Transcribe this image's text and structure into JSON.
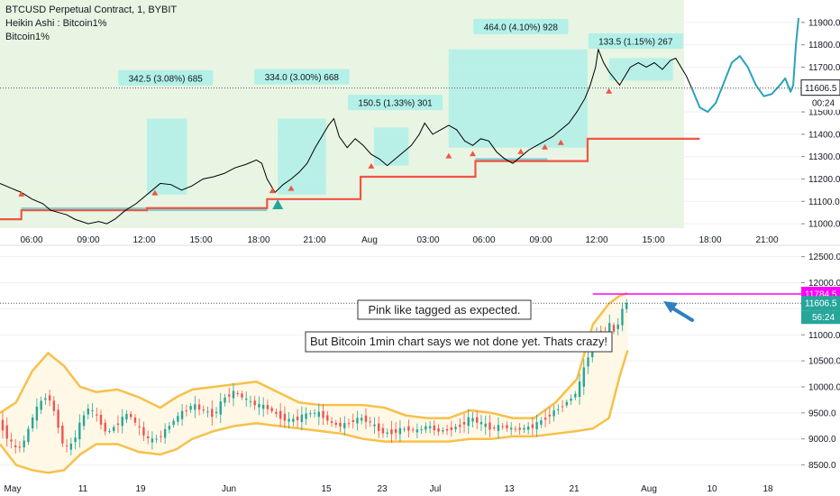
{
  "header": {
    "symbol_line": "BTCUSD Perpetual Contract, 1, BYBIT",
    "line2": "Heikin Ashi : Bitcoin1%",
    "line3": "Bitcoin1%"
  },
  "chart_data": [
    {
      "type": "line",
      "title": "BTCUSD Perpetual Contract, 1, BYBIT",
      "y_ticks": [
        "11900.0",
        "11800.0",
        "11700.0",
        "11600.0",
        "11500.0",
        "11400.0",
        "11300.0",
        "11200.0",
        "11100.0",
        "11000.0"
      ],
      "ylim": [
        10960,
        11960
      ],
      "x_ticks": [
        "06:00",
        "09:00",
        "12:00",
        "15:00",
        "18:00",
        "21:00",
        "Aug",
        "03:00",
        "06:00",
        "09:00",
        "12:00",
        "15:00",
        "18:00",
        "21:00"
      ],
      "last_price": "11606.5",
      "countdown": "00:24",
      "price_series": [
        {
          "t": 0,
          "y": 11180
        },
        {
          "t": 4,
          "y": 11160
        },
        {
          "t": 8,
          "y": 11140
        },
        {
          "t": 12,
          "y": 11110
        },
        {
          "t": 16,
          "y": 11090
        },
        {
          "t": 19,
          "y": 11060
        },
        {
          "t": 22,
          "y": 11050
        },
        {
          "t": 25,
          "y": 11040
        },
        {
          "t": 28,
          "y": 11020
        },
        {
          "t": 33,
          "y": 11000
        },
        {
          "t": 37,
          "y": 11010
        },
        {
          "t": 40,
          "y": 11000
        },
        {
          "t": 43,
          "y": 11020
        },
        {
          "t": 47,
          "y": 11060
        },
        {
          "t": 51,
          "y": 11090
        },
        {
          "t": 55,
          "y": 11130
        },
        {
          "t": 60,
          "y": 11180
        },
        {
          "t": 64,
          "y": 11175
        },
        {
          "t": 68,
          "y": 11150
        },
        {
          "t": 72,
          "y": 11170
        },
        {
          "t": 76,
          "y": 11200
        },
        {
          "t": 80,
          "y": 11210
        },
        {
          "t": 84,
          "y": 11225
        },
        {
          "t": 88,
          "y": 11250
        },
        {
          "t": 92,
          "y": 11265
        },
        {
          "t": 96,
          "y": 11285
        },
        {
          "t": 98,
          "y": 11270
        },
        {
          "t": 100,
          "y": 11200
        },
        {
          "t": 103,
          "y": 11140
        },
        {
          "t": 106,
          "y": 11175
        },
        {
          "t": 109,
          "y": 11200
        },
        {
          "t": 112,
          "y": 11230
        },
        {
          "t": 115,
          "y": 11270
        },
        {
          "t": 118,
          "y": 11340
        },
        {
          "t": 121,
          "y": 11400
        },
        {
          "t": 123,
          "y": 11440
        },
        {
          "t": 125,
          "y": 11470
        },
        {
          "t": 127,
          "y": 11390
        },
        {
          "t": 130,
          "y": 11340
        },
        {
          "t": 133,
          "y": 11380
        },
        {
          "t": 136,
          "y": 11350
        },
        {
          "t": 139,
          "y": 11310
        },
        {
          "t": 142,
          "y": 11290
        },
        {
          "t": 145,
          "y": 11260
        },
        {
          "t": 148,
          "y": 11290
        },
        {
          "t": 151,
          "y": 11320
        },
        {
          "t": 154,
          "y": 11350
        },
        {
          "t": 157,
          "y": 11400
        },
        {
          "t": 159,
          "y": 11450
        },
        {
          "t": 162,
          "y": 11400
        },
        {
          "t": 165,
          "y": 11420
        },
        {
          "t": 168,
          "y": 11440
        },
        {
          "t": 171,
          "y": 11420
        },
        {
          "t": 174,
          "y": 11370
        },
        {
          "t": 177,
          "y": 11350
        },
        {
          "t": 180,
          "y": 11380
        },
        {
          "t": 183,
          "y": 11370
        },
        {
          "t": 186,
          "y": 11320
        },
        {
          "t": 189,
          "y": 11290
        },
        {
          "t": 192,
          "y": 11270
        },
        {
          "t": 195,
          "y": 11300
        },
        {
          "t": 198,
          "y": 11330
        },
        {
          "t": 201,
          "y": 11350
        },
        {
          "t": 204,
          "y": 11370
        },
        {
          "t": 207,
          "y": 11390
        },
        {
          "t": 210,
          "y": 11420
        },
        {
          "t": 213,
          "y": 11450
        },
        {
          "t": 216,
          "y": 11500
        },
        {
          "t": 219,
          "y": 11560
        },
        {
          "t": 221,
          "y": 11620
        },
        {
          "t": 223,
          "y": 11700
        },
        {
          "t": 224,
          "y": 11780
        },
        {
          "t": 226,
          "y": 11720
        },
        {
          "t": 228,
          "y": 11680
        },
        {
          "t": 230,
          "y": 11650
        },
        {
          "t": 232,
          "y": 11620
        },
        {
          "t": 234,
          "y": 11660
        },
        {
          "t": 236,
          "y": 11700
        },
        {
          "t": 239,
          "y": 11720
        },
        {
          "t": 242,
          "y": 11700
        },
        {
          "t": 245,
          "y": 11720
        },
        {
          "t": 248,
          "y": 11690
        },
        {
          "t": 251,
          "y": 11730
        },
        {
          "t": 253,
          "y": 11740
        },
        {
          "t": 255,
          "y": 11700
        },
        {
          "t": 257,
          "y": 11660
        },
        {
          "t": 259,
          "y": 11606.5
        }
      ],
      "projection": [
        {
          "t": 259,
          "y": 11606.5
        },
        {
          "t": 262,
          "y": 11520
        },
        {
          "t": 265,
          "y": 11500
        },
        {
          "t": 268,
          "y": 11540
        },
        {
          "t": 271,
          "y": 11630
        },
        {
          "t": 274,
          "y": 11720
        },
        {
          "t": 277,
          "y": 11750
        },
        {
          "t": 280,
          "y": 11700
        },
        {
          "t": 283,
          "y": 11620
        },
        {
          "t": 286,
          "y": 11570
        },
        {
          "t": 289,
          "y": 11580
        },
        {
          "t": 292,
          "y": 11620
        },
        {
          "t": 294,
          "y": 11650
        },
        {
          "t": 296,
          "y": 11590
        },
        {
          "t": 297,
          "y": 11620
        },
        {
          "t": 298,
          "y": 11800
        },
        {
          "t": 299,
          "y": 11920
        }
      ],
      "stop_line": [
        {
          "t": 0,
          "y": 11020
        },
        {
          "t": 8,
          "y": 11020
        },
        {
          "t": 8,
          "y": 11060
        },
        {
          "t": 55,
          "y": 11060
        },
        {
          "t": 55,
          "y": 11070
        },
        {
          "t": 100,
          "y": 11070
        },
        {
          "t": 100,
          "y": 11110
        },
        {
          "t": 135,
          "y": 11110
        },
        {
          "t": 135,
          "y": 11210
        },
        {
          "t": 178,
          "y": 11210
        },
        {
          "t": 178,
          "y": 11280
        },
        {
          "t": 220,
          "y": 11280
        },
        {
          "t": 220,
          "y": 11380
        },
        {
          "t": 262,
          "y": 11380
        }
      ],
      "support_segments": [
        {
          "t0": 8,
          "t1": 100,
          "y": 11065
        },
        {
          "t0": 178,
          "t1": 205,
          "y": 11285
        }
      ],
      "range_boxes": [
        {
          "t0": 55,
          "t1": 70,
          "y0": 11130,
          "y1": 11470,
          "label": "342.5 (3.08%) 685",
          "label_t": 62,
          "label_y": 11650
        },
        {
          "t0": 104,
          "t1": 122,
          "y0": 11130,
          "y1": 11470,
          "label": "334.0 (3.00%) 668",
          "label_t": 113,
          "label_y": 11655
        },
        {
          "t0": 140,
          "t1": 153,
          "y0": 11260,
          "y1": 11430,
          "label": "150.5 (1.33%) 301",
          "label_t": 148,
          "label_y": 11540
        },
        {
          "t0": 168,
          "t1": 220,
          "y0": 11340,
          "y1": 11780,
          "label": "464.0 (4.10%) 928",
          "label_t": 195,
          "label_y": 11880
        },
        {
          "t0": 228,
          "t1": 252,
          "y0": 11640,
          "y1": 11740,
          "label": "133.5 (1.15%) 267",
          "label_t": 238,
          "label_y": 11815
        }
      ],
      "signal_markers": [
        {
          "t": 8,
          "y": 11130
        },
        {
          "t": 58,
          "y": 11135
        },
        {
          "t": 102,
          "y": 11145
        },
        {
          "t": 109,
          "y": 11155
        },
        {
          "t": 139,
          "y": 11255
        },
        {
          "t": 168,
          "y": 11300
        },
        {
          "t": 177,
          "y": 11310
        },
        {
          "t": 195,
          "y": 11320
        },
        {
          "t": 204,
          "y": 11340
        },
        {
          "t": 210,
          "y": 11360
        },
        {
          "t": 228,
          "y": 11590
        }
      ],
      "big_marker": {
        "t": 104,
        "y": 11085
      }
    },
    {
      "type": "line",
      "title": "",
      "y_ticks": [
        "12500.0",
        "12000.0",
        "11500.0",
        "11000.0",
        "10500.0",
        "10000.0",
        "9500.0",
        "9000.0",
        "8500.0"
      ],
      "ylim": [
        8250,
        12650
      ],
      "x_ticks": [
        "May",
        "11",
        "19",
        "Jun",
        "15",
        "23",
        "Jul",
        "13",
        "21",
        "Aug",
        "10",
        "18"
      ],
      "pink_level": "11784.5",
      "last_price": "11606.5",
      "countdown": "56:24",
      "price_series": [
        {
          "t": 0,
          "y": 9300
        },
        {
          "t": 3,
          "y": 9000
        },
        {
          "t": 6,
          "y": 8800
        },
        {
          "t": 9,
          "y": 8950
        },
        {
          "t": 12,
          "y": 9400
        },
        {
          "t": 15,
          "y": 9700
        },
        {
          "t": 18,
          "y": 9850
        },
        {
          "t": 21,
          "y": 9400
        },
        {
          "t": 24,
          "y": 8800
        },
        {
          "t": 27,
          "y": 8900
        },
        {
          "t": 30,
          "y": 9300
        },
        {
          "t": 33,
          "y": 9600
        },
        {
          "t": 36,
          "y": 9450
        },
        {
          "t": 40,
          "y": 9100
        },
        {
          "t": 44,
          "y": 9300
        },
        {
          "t": 48,
          "y": 9500
        },
        {
          "t": 52,
          "y": 9200
        },
        {
          "t": 56,
          "y": 8950
        },
        {
          "t": 60,
          "y": 9050
        },
        {
          "t": 64,
          "y": 9300
        },
        {
          "t": 68,
          "y": 9500
        },
        {
          "t": 72,
          "y": 9650
        },
        {
          "t": 76,
          "y": 9550
        },
        {
          "t": 80,
          "y": 9450
        },
        {
          "t": 84,
          "y": 9800
        },
        {
          "t": 88,
          "y": 9900
        },
        {
          "t": 92,
          "y": 9750
        },
        {
          "t": 96,
          "y": 9650
        },
        {
          "t": 100,
          "y": 9600
        },
        {
          "t": 104,
          "y": 9450
        },
        {
          "t": 108,
          "y": 9350
        },
        {
          "t": 112,
          "y": 9400
        },
        {
          "t": 116,
          "y": 9500
        },
        {
          "t": 120,
          "y": 9480
        },
        {
          "t": 124,
          "y": 9300
        },
        {
          "t": 128,
          "y": 9250
        },
        {
          "t": 132,
          "y": 9350
        },
        {
          "t": 136,
          "y": 9400
        },
        {
          "t": 140,
          "y": 9250
        },
        {
          "t": 144,
          "y": 9100
        },
        {
          "t": 148,
          "y": 9150
        },
        {
          "t": 152,
          "y": 9200
        },
        {
          "t": 156,
          "y": 9150
        },
        {
          "t": 160,
          "y": 9250
        },
        {
          "t": 164,
          "y": 9150
        },
        {
          "t": 168,
          "y": 9180
        },
        {
          "t": 172,
          "y": 9250
        },
        {
          "t": 176,
          "y": 9400
        },
        {
          "t": 180,
          "y": 9300
        },
        {
          "t": 184,
          "y": 9200
        },
        {
          "t": 188,
          "y": 9250
        },
        {
          "t": 192,
          "y": 9180
        },
        {
          "t": 196,
          "y": 9200
        },
        {
          "t": 200,
          "y": 9250
        },
        {
          "t": 204,
          "y": 9400
        },
        {
          "t": 208,
          "y": 9550
        },
        {
          "t": 212,
          "y": 9700
        },
        {
          "t": 216,
          "y": 9900
        },
        {
          "t": 219,
          "y": 10400
        },
        {
          "t": 222,
          "y": 10900
        },
        {
          "t": 224,
          "y": 11100
        },
        {
          "t": 226,
          "y": 10900
        },
        {
          "t": 228,
          "y": 11200
        },
        {
          "t": 230,
          "y": 11050
        },
        {
          "t": 232,
          "y": 11300
        },
        {
          "t": 234,
          "y": 11650
        },
        {
          "t": 235,
          "y": 11606.5
        }
      ],
      "upper_band": [
        {
          "t": 0,
          "y": 9500
        },
        {
          "t": 6,
          "y": 9700
        },
        {
          "t": 12,
          "y": 10300
        },
        {
          "t": 18,
          "y": 10650
        },
        {
          "t": 24,
          "y": 10400
        },
        {
          "t": 30,
          "y": 10000
        },
        {
          "t": 36,
          "y": 9900
        },
        {
          "t": 44,
          "y": 9950
        },
        {
          "t": 52,
          "y": 9800
        },
        {
          "t": 60,
          "y": 9600
        },
        {
          "t": 66,
          "y": 9800
        },
        {
          "t": 72,
          "y": 9950
        },
        {
          "t": 80,
          "y": 10000
        },
        {
          "t": 88,
          "y": 10050
        },
        {
          "t": 96,
          "y": 10100
        },
        {
          "t": 104,
          "y": 9900
        },
        {
          "t": 112,
          "y": 9700
        },
        {
          "t": 120,
          "y": 9650
        },
        {
          "t": 128,
          "y": 9650
        },
        {
          "t": 136,
          "y": 9650
        },
        {
          "t": 144,
          "y": 9600
        },
        {
          "t": 152,
          "y": 9450
        },
        {
          "t": 160,
          "y": 9400
        },
        {
          "t": 168,
          "y": 9400
        },
        {
          "t": 176,
          "y": 9550
        },
        {
          "t": 184,
          "y": 9500
        },
        {
          "t": 192,
          "y": 9400
        },
        {
          "t": 200,
          "y": 9400
        },
        {
          "t": 208,
          "y": 9700
        },
        {
          "t": 216,
          "y": 10150
        },
        {
          "t": 222,
          "y": 11200
        },
        {
          "t": 228,
          "y": 11600
        },
        {
          "t": 232,
          "y": 11750
        },
        {
          "t": 235,
          "y": 11800
        }
      ],
      "lower_band": [
        {
          "t": 0,
          "y": 8900
        },
        {
          "t": 6,
          "y": 8500
        },
        {
          "t": 12,
          "y": 8400
        },
        {
          "t": 18,
          "y": 8350
        },
        {
          "t": 24,
          "y": 8400
        },
        {
          "t": 30,
          "y": 8700
        },
        {
          "t": 36,
          "y": 8900
        },
        {
          "t": 44,
          "y": 8900
        },
        {
          "t": 52,
          "y": 8750
        },
        {
          "t": 60,
          "y": 8700
        },
        {
          "t": 66,
          "y": 8800
        },
        {
          "t": 72,
          "y": 9000
        },
        {
          "t": 80,
          "y": 9150
        },
        {
          "t": 88,
          "y": 9250
        },
        {
          "t": 96,
          "y": 9300
        },
        {
          "t": 104,
          "y": 9250
        },
        {
          "t": 112,
          "y": 9200
        },
        {
          "t": 120,
          "y": 9150
        },
        {
          "t": 128,
          "y": 9100
        },
        {
          "t": 136,
          "y": 9000
        },
        {
          "t": 144,
          "y": 8950
        },
        {
          "t": 152,
          "y": 8950
        },
        {
          "t": 160,
          "y": 8950
        },
        {
          "t": 168,
          "y": 8950
        },
        {
          "t": 176,
          "y": 9000
        },
        {
          "t": 184,
          "y": 9000
        },
        {
          "t": 192,
          "y": 9050
        },
        {
          "t": 200,
          "y": 9050
        },
        {
          "t": 208,
          "y": 9100
        },
        {
          "t": 216,
          "y": 9150
        },
        {
          "t": 222,
          "y": 9200
        },
        {
          "t": 228,
          "y": 9400
        },
        {
          "t": 232,
          "y": 10200
        },
        {
          "t": 235,
          "y": 10700
        }
      ]
    }
  ],
  "annotations": {
    "note1": "Pink like tagged as expected.",
    "note2": "But Bitcoin 1min chart says we not done yet. Thats crazy!"
  },
  "colors": {
    "up_candle": "#26a69a",
    "down_candle": "#ef5350",
    "price_line": "#000000",
    "projection": "#29a3b8",
    "stop_line": "#f05542",
    "support": "#7fd0d8",
    "box": "#b2f0e8",
    "bg_green": "#e8f5e2",
    "band": "#f7c04a",
    "band_fill": "#fff8e6",
    "pink": "#ff00ff",
    "arrow": "#2f7fc1",
    "marker": "#f05542",
    "big_marker": "#26a69a"
  }
}
